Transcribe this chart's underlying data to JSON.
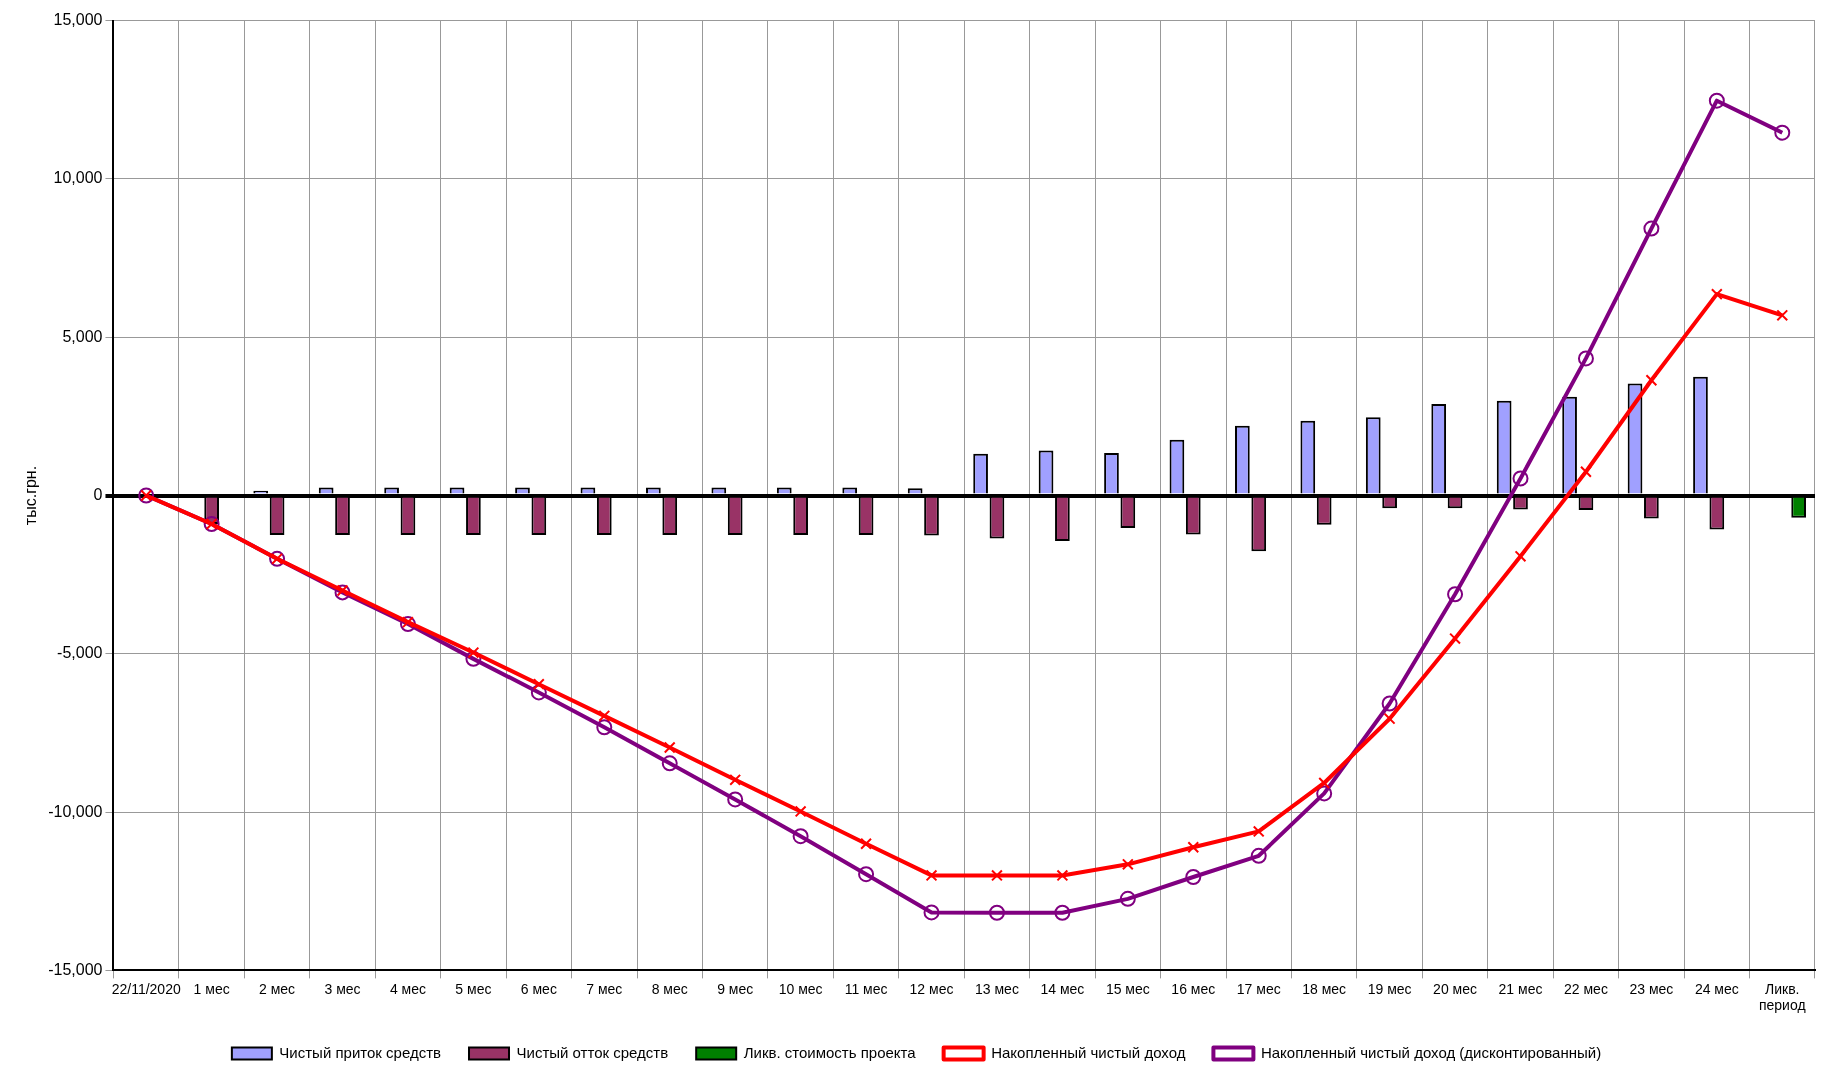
{
  "chart_data": {
    "type": "bar",
    "ylabel": "тыс.грн.",
    "categories": [
      "22/11/2020",
      "1 мес",
      "2 мес",
      "3 мес",
      "4 мес",
      "5 мес",
      "6 мес",
      "7 мес",
      "8 мес",
      "9 мес",
      "10 мес",
      "11 мес",
      "12 мес",
      "13 мес",
      "14 мес",
      "15 мес",
      "16 мес",
      "17 мес",
      "18 мес",
      "19 мес",
      "20 мес",
      "21 мес",
      "22 мес",
      "23 мес",
      "24 мес",
      "Ликв. период"
    ],
    "series": [
      {
        "name": "Чистый приток средств",
        "color": "#a0a0ff",
        "values": [
          0,
          0,
          150,
          250,
          250,
          250,
          250,
          250,
          250,
          250,
          250,
          250,
          230,
          1320,
          1420,
          1340,
          1760,
          2200,
          2360,
          2470,
          2890,
          2990,
          3120,
          3540,
          3750,
          null
        ]
      },
      {
        "name": "Чистый отток средств",
        "color": "#993366",
        "values": [
          0,
          -900,
          -1250,
          -1250,
          -1250,
          -1250,
          -1250,
          -1250,
          -1250,
          -1250,
          -1250,
          -1250,
          -1260,
          -1360,
          -1440,
          -1030,
          -1230,
          -1760,
          -920,
          -400,
          -400,
          -440,
          -460,
          -730,
          -1070,
          null
        ]
      },
      {
        "name": "Ликв. стоимость проекта",
        "color": "#008000",
        "values": [
          null,
          null,
          null,
          null,
          null,
          null,
          null,
          null,
          null,
          null,
          null,
          null,
          null,
          null,
          null,
          null,
          null,
          null,
          null,
          null,
          null,
          null,
          null,
          null,
          null,
          -700
        ]
      },
      {
        "name": "Накопленный чистый доход",
        "type": "line",
        "color": "#ff0000",
        "marker": "cross",
        "values": [
          0,
          -900,
          -2000,
          -3000,
          -4000,
          -4960,
          -5960,
          -6960,
          -7960,
          -8980,
          -9980,
          -11000,
          -12000,
          -12000,
          -12000,
          -11650,
          -11110,
          -10610,
          -9080,
          -7050,
          -4520,
          -1920,
          750,
          3640,
          6360,
          5690
        ]
      },
      {
        "name": "Накопленный чистый доход (дисконтированный)",
        "type": "line",
        "color": "#800080",
        "marker": "circle",
        "values": [
          0,
          -900,
          -2000,
          -3060,
          -4060,
          -5160,
          -6220,
          -7320,
          -8460,
          -9600,
          -10760,
          -11960,
          -13170,
          -13180,
          -13180,
          -12740,
          -12050,
          -11380,
          -9410,
          -6570,
          -3120,
          540,
          4330,
          8430,
          12470,
          11460
        ]
      }
    ],
    "ylim": [
      -15000,
      15000
    ],
    "yticks": [
      {
        "value": -15000,
        "label": "-15,000"
      },
      {
        "value": -10000,
        "label": "-10,000"
      },
      {
        "value": -5000,
        "label": "-5,000"
      },
      0,
      {
        "value": 5000,
        "label": "5,000"
      },
      {
        "value": 10000,
        "label": "10,000"
      },
      {
        "value": 15000,
        "label": "15,000"
      }
    ],
    "grid": true,
    "legend": "bottom",
    "line_style": "solid"
  }
}
